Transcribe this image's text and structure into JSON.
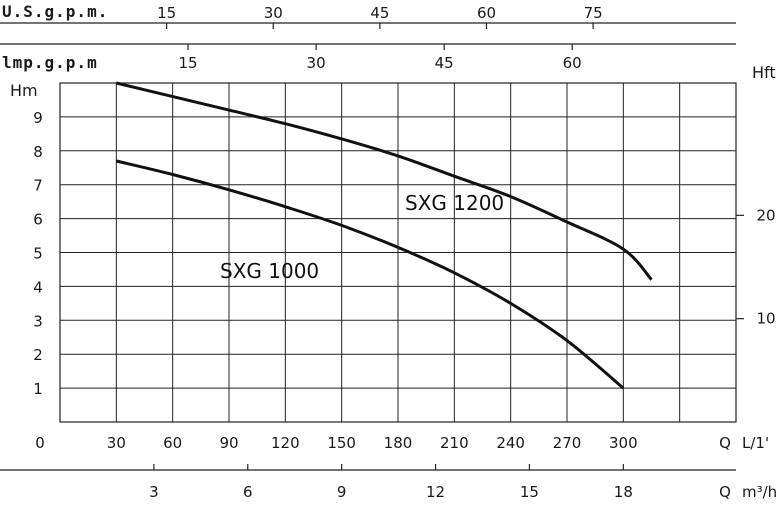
{
  "chart_data": {
    "type": "line",
    "grid": true,
    "x": {
      "label": "L/1'",
      "label_prefix": "Q",
      "origin_label": "0",
      "ticks": [
        30,
        60,
        90,
        120,
        150,
        180,
        210,
        240,
        270,
        300
      ],
      "range": [
        0,
        360
      ]
    },
    "y": {
      "label": "Hm",
      "ticks": [
        1,
        2,
        3,
        4,
        5,
        6,
        7,
        8,
        9
      ],
      "range": [
        0,
        10
      ]
    },
    "y_right": {
      "label": "Hft",
      "ticks": [
        10,
        20
      ]
    },
    "x_top_usgpm": {
      "label": "U.S.g.p.m.",
      "ticks": [
        15,
        30,
        45,
        60,
        75
      ]
    },
    "x_top_impgpm": {
      "label": "lmp.g.p.m",
      "ticks": [
        15,
        30,
        45,
        60
      ]
    },
    "x_bottom_m3h": {
      "label": "m³/h",
      "label_prefix": "Q",
      "ticks": [
        3,
        6,
        9,
        12,
        15,
        18
      ]
    },
    "series": [
      {
        "name": "SXG 1200",
        "x": [
          30,
          60,
          90,
          120,
          150,
          180,
          210,
          240,
          270,
          300,
          315
        ],
        "y": [
          10.0,
          9.6,
          9.2,
          8.8,
          8.35,
          7.85,
          7.25,
          6.65,
          5.9,
          5.1,
          4.2
        ]
      },
      {
        "name": "SXG 1000",
        "x": [
          30,
          60,
          90,
          120,
          150,
          180,
          210,
          240,
          270,
          300
        ],
        "y": [
          7.7,
          7.3,
          6.85,
          6.35,
          5.8,
          5.15,
          4.4,
          3.5,
          2.4,
          1.0
        ]
      }
    ]
  }
}
